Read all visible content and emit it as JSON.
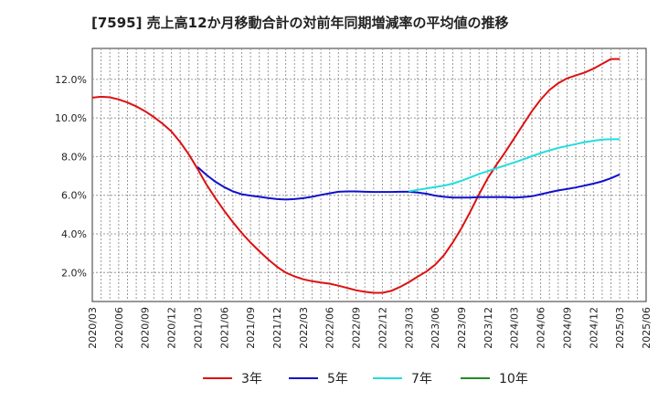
{
  "title": "[7595]  売上高12か月移動合計の対前年同期増減率の平均値の推移",
  "chart_data": {
    "type": "line",
    "title": "[7595]  売上高12か月移動合計の対前年同期増減率の平均値の推移",
    "xlabel": "",
    "ylabel": "",
    "x_ticks": [
      "2020/03",
      "2020/06",
      "2020/09",
      "2020/12",
      "2021/03",
      "2021/06",
      "2021/09",
      "2021/12",
      "2022/03",
      "2022/06",
      "2022/09",
      "2022/12",
      "2023/03",
      "2023/06",
      "2023/09",
      "2023/12",
      "2024/03",
      "2024/06",
      "2024/09",
      "2024/12",
      "2025/03",
      "2025/06"
    ],
    "y_ticks": [
      "2.0%",
      "4.0%",
      "6.0%",
      "8.0%",
      "10.0%",
      "12.0%"
    ],
    "y_tick_values": [
      2,
      4,
      6,
      8,
      10,
      12
    ],
    "ylim": [
      0.5,
      13.6
    ],
    "grid": true,
    "legend_position": "bottom",
    "series": [
      {
        "name": "3年",
        "color": "#dd1111",
        "x": [
          "2020/03",
          "2020/04",
          "2020/05",
          "2020/06",
          "2020/07",
          "2020/08",
          "2020/09",
          "2020/10",
          "2020/11",
          "2020/12",
          "2021/01",
          "2021/02",
          "2021/03",
          "2021/04",
          "2021/05",
          "2021/06",
          "2021/07",
          "2021/08",
          "2021/09",
          "2021/10",
          "2021/11",
          "2021/12",
          "2022/01",
          "2022/02",
          "2022/03",
          "2022/04",
          "2022/05",
          "2022/06",
          "2022/07",
          "2022/08",
          "2022/09",
          "2022/10",
          "2022/11",
          "2022/12",
          "2023/01",
          "2023/02",
          "2023/03",
          "2023/04",
          "2023/05",
          "2023/06",
          "2023/07",
          "2023/08",
          "2023/09",
          "2023/10",
          "2023/11",
          "2023/12",
          "2024/01",
          "2024/02",
          "2024/03",
          "2024/04",
          "2024/05",
          "2024/06",
          "2024/07",
          "2024/08",
          "2024/09",
          "2024/10",
          "2024/11",
          "2024/12",
          "2025/01",
          "2025/02",
          "2025/03"
        ],
        "values": [
          11.05,
          11.1,
          11.07,
          10.96,
          10.8,
          10.6,
          10.35,
          10.05,
          9.7,
          9.3,
          8.75,
          8.1,
          7.35,
          6.55,
          5.85,
          5.2,
          4.6,
          4.05,
          3.55,
          3.1,
          2.68,
          2.3,
          2.0,
          1.8,
          1.65,
          1.55,
          1.48,
          1.42,
          1.32,
          1.2,
          1.08,
          1.0,
          0.95,
          0.95,
          1.05,
          1.25,
          1.5,
          1.78,
          2.05,
          2.4,
          2.9,
          3.55,
          4.3,
          5.15,
          6.05,
          6.9,
          7.6,
          8.25,
          8.95,
          9.65,
          10.35,
          10.95,
          11.45,
          11.8,
          12.05,
          12.2,
          12.35,
          12.55,
          12.8,
          13.05,
          13.05
        ]
      },
      {
        "name": "5年",
        "color": "#1111cc",
        "x": [
          "2021/03",
          "2021/04",
          "2021/05",
          "2021/06",
          "2021/07",
          "2021/08",
          "2021/09",
          "2021/10",
          "2021/11",
          "2021/12",
          "2022/01",
          "2022/02",
          "2022/03",
          "2022/04",
          "2022/05",
          "2022/06",
          "2022/07",
          "2022/08",
          "2022/09",
          "2022/10",
          "2022/11",
          "2022/12",
          "2023/01",
          "2023/02",
          "2023/03",
          "2023/04",
          "2023/05",
          "2023/06",
          "2023/07",
          "2023/08",
          "2023/09",
          "2023/10",
          "2023/11",
          "2023/12",
          "2024/01",
          "2024/02",
          "2024/03",
          "2024/04",
          "2024/05",
          "2024/06",
          "2024/07",
          "2024/08",
          "2024/09",
          "2024/10",
          "2024/11",
          "2024/12",
          "2025/01",
          "2025/02",
          "2025/03"
        ],
        "values": [
          7.45,
          7.05,
          6.7,
          6.42,
          6.2,
          6.05,
          5.98,
          5.92,
          5.86,
          5.8,
          5.78,
          5.8,
          5.85,
          5.92,
          6.02,
          6.1,
          6.18,
          6.2,
          6.2,
          6.18,
          6.17,
          6.17,
          6.17,
          6.18,
          6.18,
          6.14,
          6.08,
          5.98,
          5.92,
          5.88,
          5.88,
          5.88,
          5.9,
          5.9,
          5.9,
          5.9,
          5.88,
          5.9,
          5.95,
          6.05,
          6.15,
          6.25,
          6.32,
          6.4,
          6.5,
          6.6,
          6.72,
          6.88,
          7.08
        ]
      },
      {
        "name": "7年",
        "color": "#22dddd",
        "x": [
          "2023/03",
          "2023/04",
          "2023/05",
          "2023/06",
          "2023/07",
          "2023/08",
          "2023/09",
          "2023/10",
          "2023/11",
          "2023/12",
          "2024/01",
          "2024/02",
          "2024/03",
          "2024/04",
          "2024/05",
          "2024/06",
          "2024/07",
          "2024/08",
          "2024/09",
          "2024/10",
          "2024/11",
          "2024/12",
          "2025/01",
          "2025/02",
          "2025/03"
        ],
        "values": [
          6.2,
          6.28,
          6.35,
          6.42,
          6.5,
          6.6,
          6.75,
          6.92,
          7.1,
          7.25,
          7.4,
          7.55,
          7.7,
          7.85,
          8.02,
          8.18,
          8.32,
          8.45,
          8.55,
          8.65,
          8.75,
          8.82,
          8.88,
          8.9,
          8.9
        ]
      },
      {
        "name": "10年",
        "color": "#228b22",
        "x": [],
        "values": []
      }
    ]
  }
}
